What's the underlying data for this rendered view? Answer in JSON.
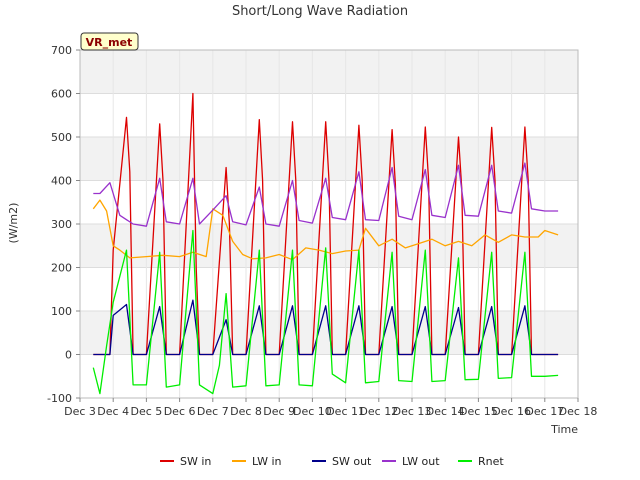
{
  "chart_data": {
    "type": "line",
    "title": "Short/Long Wave Radiation",
    "xlabel": "Time",
    "ylabel": "(W/m2)",
    "station_badge": "VR_met",
    "xlim": [
      3,
      18
    ],
    "ylim": [
      -100,
      700
    ],
    "x_ticks": [
      3,
      4,
      5,
      6,
      7,
      8,
      9,
      10,
      11,
      12,
      13,
      14,
      15,
      16,
      17,
      18
    ],
    "x_tick_labels": [
      "Dec 3",
      "Dec 4",
      "Dec 5",
      "Dec 6",
      "Dec 7",
      "Dec 8",
      "Dec 9",
      "Dec 10",
      "Dec 11",
      "Dec 12",
      "Dec 13",
      "Dec 14",
      "Dec 15",
      "Dec 16",
      "Dec 17",
      "Dec 18"
    ],
    "y_ticks": [
      -100,
      0,
      100,
      200,
      300,
      400,
      500,
      600,
      700
    ],
    "y_tick_labels": [
      "-100",
      "0",
      "100",
      "200",
      "300",
      "400",
      "500",
      "600",
      "700"
    ],
    "grid": true,
    "legend_position": "bottom",
    "series": [
      {
        "name": "SW in",
        "color": "#dd0000",
        "x": [
          3.4,
          3.9,
          4.0,
          4.4,
          4.5,
          4.6,
          4.9,
          5.0,
          5.4,
          5.5,
          5.6,
          5.9,
          6.0,
          6.4,
          6.5,
          6.6,
          6.9,
          7.0,
          7.4,
          7.5,
          7.6,
          7.9,
          8.0,
          8.4,
          8.5,
          8.6,
          8.9,
          9.0,
          9.4,
          9.5,
          9.6,
          9.9,
          10.0,
          10.4,
          10.5,
          10.6,
          10.9,
          11.0,
          11.4,
          11.5,
          11.6,
          11.9,
          12.0,
          12.4,
          12.5,
          12.6,
          12.9,
          13.0,
          13.4,
          13.5,
          13.6,
          13.9,
          14.0,
          14.4,
          14.5,
          14.6,
          14.9,
          15.0,
          15.4,
          15.5,
          15.6,
          15.9,
          16.0,
          16.4,
          16.5,
          16.6,
          16.9,
          17.0,
          17.4
        ],
        "y": [
          0,
          0,
          240,
          545,
          420,
          0,
          0,
          0,
          530,
          400,
          0,
          0,
          0,
          600,
          200,
          0,
          0,
          0,
          430,
          300,
          0,
          0,
          0,
          540,
          400,
          0,
          0,
          0,
          535,
          400,
          0,
          0,
          0,
          535,
          400,
          0,
          0,
          0,
          527,
          400,
          0,
          0,
          0,
          517,
          390,
          0,
          0,
          0,
          523,
          400,
          0,
          0,
          0,
          500,
          380,
          0,
          0,
          0,
          522,
          400,
          0,
          0,
          0,
          523,
          400,
          0,
          0,
          0,
          0
        ]
      },
      {
        "name": "LW in",
        "color": "#ffa500",
        "x": [
          3.4,
          3.6,
          3.8,
          4.0,
          4.2,
          4.5,
          5.0,
          5.5,
          6.0,
          6.4,
          6.8,
          7.0,
          7.3,
          7.6,
          7.9,
          8.2,
          8.6,
          9.0,
          9.4,
          9.8,
          10.2,
          10.6,
          11.0,
          11.4,
          11.6,
          12.0,
          12.4,
          12.8,
          13.2,
          13.6,
          14.0,
          14.4,
          14.8,
          15.2,
          15.6,
          16.0,
          16.4,
          16.8,
          17.0,
          17.4
        ],
        "y": [
          335,
          355,
          330,
          250,
          240,
          222,
          225,
          228,
          225,
          235,
          225,
          335,
          320,
          260,
          230,
          220,
          222,
          230,
          218,
          245,
          240,
          232,
          238,
          240,
          290,
          250,
          265,
          245,
          255,
          265,
          250,
          260,
          250,
          275,
          258,
          275,
          270,
          270,
          285,
          275
        ]
      },
      {
        "name": "SW out",
        "color": "#00008b",
        "x": [
          3.4,
          3.9,
          4.0,
          4.4,
          4.6,
          4.9,
          5.0,
          5.4,
          5.6,
          5.9,
          6.0,
          6.4,
          6.6,
          6.9,
          7.0,
          7.4,
          7.6,
          7.9,
          8.0,
          8.4,
          8.6,
          8.9,
          9.0,
          9.4,
          9.6,
          9.9,
          10.0,
          10.4,
          10.6,
          10.9,
          11.0,
          11.4,
          11.6,
          11.9,
          12.0,
          12.4,
          12.6,
          12.9,
          13.0,
          13.4,
          13.6,
          13.9,
          14.0,
          14.4,
          14.6,
          14.9,
          15.0,
          15.4,
          15.6,
          15.9,
          16.0,
          16.4,
          16.6,
          16.9,
          17.0,
          17.4
        ],
        "y": [
          0,
          0,
          90,
          115,
          0,
          0,
          0,
          110,
          0,
          0,
          0,
          125,
          0,
          0,
          0,
          80,
          0,
          0,
          0,
          112,
          0,
          0,
          0,
          112,
          0,
          0,
          0,
          112,
          0,
          0,
          0,
          112,
          0,
          0,
          0,
          110,
          0,
          0,
          0,
          110,
          0,
          0,
          0,
          108,
          0,
          0,
          0,
          110,
          0,
          0,
          0,
          112,
          0,
          0,
          0,
          0
        ]
      },
      {
        "name": "LW out",
        "color": "#9932cc",
        "x": [
          3.4,
          3.6,
          3.9,
          4.2,
          4.6,
          5.0,
          5.4,
          5.6,
          6.0,
          6.4,
          6.6,
          7.0,
          7.4,
          7.6,
          8.0,
          8.4,
          8.6,
          9.0,
          9.4,
          9.6,
          10.0,
          10.4,
          10.6,
          11.0,
          11.4,
          11.6,
          12.0,
          12.4,
          12.6,
          13.0,
          13.4,
          13.6,
          14.0,
          14.4,
          14.6,
          15.0,
          15.4,
          15.6,
          16.0,
          16.4,
          16.6,
          17.0,
          17.4
        ],
        "y": [
          370,
          370,
          395,
          320,
          300,
          295,
          405,
          305,
          300,
          405,
          300,
          332,
          365,
          305,
          298,
          385,
          300,
          295,
          400,
          308,
          302,
          405,
          315,
          310,
          420,
          310,
          308,
          430,
          318,
          310,
          425,
          320,
          315,
          435,
          320,
          318,
          435,
          330,
          325,
          440,
          335,
          330,
          330
        ]
      },
      {
        "name": "Rnet",
        "color": "#00ee00",
        "x": [
          3.4,
          3.6,
          3.8,
          4.0,
          4.4,
          4.6,
          5.0,
          5.4,
          5.6,
          6.0,
          6.4,
          6.6,
          7.0,
          7.2,
          7.4,
          7.6,
          8.0,
          8.4,
          8.6,
          9.0,
          9.4,
          9.6,
          10.0,
          10.4,
          10.6,
          11.0,
          11.4,
          11.6,
          12.0,
          12.4,
          12.6,
          13.0,
          13.4,
          13.6,
          14.0,
          14.4,
          14.6,
          15.0,
          15.4,
          15.6,
          16.0,
          16.4,
          16.6,
          17.0,
          17.4
        ],
        "y": [
          -30,
          -90,
          20,
          120,
          240,
          -70,
          -70,
          235,
          -75,
          -70,
          285,
          -70,
          -90,
          -25,
          140,
          -75,
          -72,
          240,
          -72,
          -70,
          240,
          -70,
          -72,
          245,
          -45,
          -65,
          240,
          -65,
          -62,
          235,
          -60,
          -62,
          240,
          -62,
          -60,
          222,
          -58,
          -57,
          235,
          -55,
          -53,
          235,
          -50,
          -50,
          -48
        ]
      }
    ]
  }
}
